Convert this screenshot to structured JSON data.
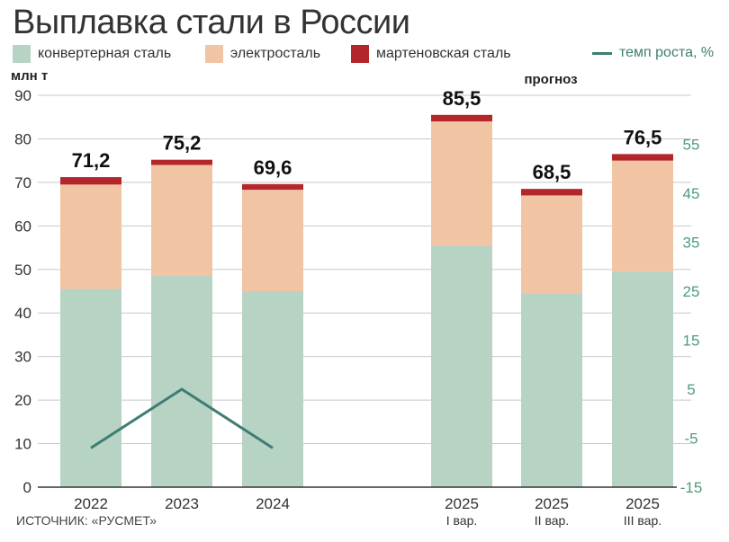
{
  "title": "Выплавка стали в России",
  "legend": {
    "converter": "конвертерная сталь",
    "electric": "электросталь",
    "openhearth": "мартеновская сталь",
    "growth": "темп роста, %"
  },
  "colors": {
    "converter": "#b7d3c3",
    "electric": "#f1c4a4",
    "openhearth": "#b3262c",
    "growth": "#3f7d73",
    "grid": "#c8c8c8",
    "axis": "#333333"
  },
  "source": "ИСТОЧНИК: «РУСМЕТ»",
  "forecast_label": "прогноз",
  "chart_data": {
    "type": "bar",
    "stacked": true,
    "left_axis": {
      "label": "млн т",
      "ticks": [
        "0",
        "10",
        "20",
        "30",
        "40",
        "50",
        "60",
        "70",
        "80",
        "90"
      ],
      "ylim": [
        0,
        90
      ]
    },
    "right_axis": {
      "label": "темп роста, %",
      "ticks": [
        "-15",
        "-5",
        "5",
        "15",
        "25",
        "35",
        "45",
        "55"
      ],
      "ylim": [
        -15,
        65
      ]
    },
    "grid": true,
    "legend_position": "top",
    "categories": [
      [
        "2022",
        ""
      ],
      [
        "2023",
        ""
      ],
      [
        "2024",
        ""
      ],
      [
        "2025",
        "I вар."
      ],
      [
        "2025",
        "II вар."
      ],
      [
        "2025",
        "III вар."
      ]
    ],
    "totals": [
      "71,2",
      "75,2",
      "69,6",
      "85,5",
      "68,5",
      "76,5"
    ],
    "series": [
      {
        "name": "конвертерная сталь",
        "values": [
          45.5,
          48.5,
          45.0,
          55.5,
          44.5,
          49.5
        ]
      },
      {
        "name": "электросталь",
        "values": [
          24.0,
          25.5,
          23.3,
          28.5,
          22.5,
          25.5
        ]
      },
      {
        "name": "мартеновская сталь",
        "values": [
          1.7,
          1.2,
          1.3,
          1.5,
          1.5,
          1.5
        ]
      }
    ],
    "growth_series": {
      "name": "темп роста, %",
      "categories": [
        "2022",
        "2023",
        "2024"
      ],
      "values": [
        -7,
        5,
        -7
      ]
    }
  }
}
